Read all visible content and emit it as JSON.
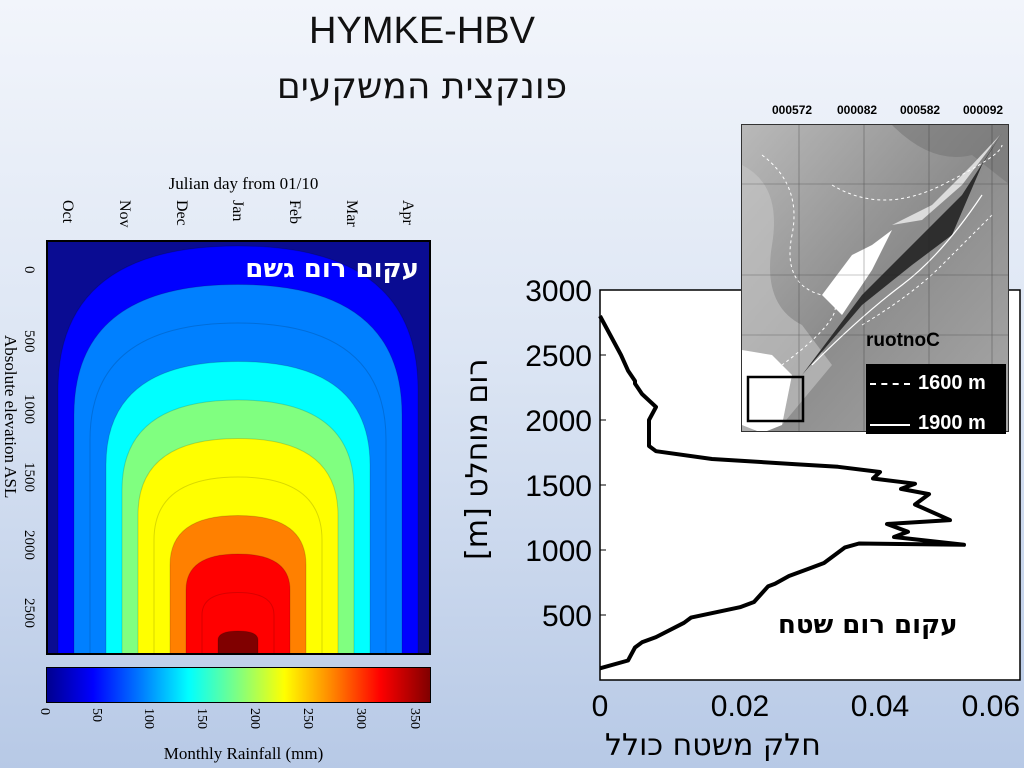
{
  "title": "HYMKE-HBV",
  "subtitle": "פונקצית המשקעים",
  "chart_data": [
    {
      "type": "heatmap",
      "title": "עקום רום גשם",
      "xlabel": "Julian day from 01/10",
      "ylabel": "Absolute elevation ASL",
      "x_tick_labels": [
        "Oct",
        "Nov",
        "Dec",
        "Jan",
        "Feb",
        "Mar",
        "Apr"
      ],
      "y_tick_labels": [
        "0",
        "500",
        "1000",
        "1500",
        "2000",
        "2500"
      ],
      "ylim": [
        0,
        2900
      ],
      "colorbar": {
        "label": "Monthly Rainfall (mm)",
        "ticks": [
          "0",
          "50",
          "100",
          "150",
          "200",
          "250",
          "300",
          "350"
        ],
        "range": [
          0,
          360
        ],
        "colors": [
          "#00008f",
          "#0000ff",
          "#0080ff",
          "#00ffff",
          "#80ff80",
          "#ffff00",
          "#ff8000",
          "#ff0000",
          "#800000"
        ]
      },
      "peak_month": "Jan"
    },
    {
      "type": "line",
      "title": "עקום רום שטח",
      "xlabel": "חלק משטח כולל",
      "ylabel": "רום מוחלט [m]",
      "xlim": [
        0,
        0.06
      ],
      "ylim": [
        0,
        3000
      ],
      "x_tick_labels": [
        "0",
        "0.02",
        "0.04",
        "0.06"
      ],
      "y_tick_labels": [
        "500",
        "1000",
        "1500",
        "2000",
        "2500",
        "3000"
      ],
      "series": [
        {
          "x": [
            0.0,
            0.004,
            0.005,
            0.006,
            0.008,
            0.012,
            0.013,
            0.02,
            0.022,
            0.024,
            0.025,
            0.027,
            0.03,
            0.032,
            0.035,
            0.037,
            0.052,
            0.042,
            0.044,
            0.041,
            0.05,
            0.045,
            0.047,
            0.043,
            0.045,
            0.039,
            0.04,
            0.034,
            0.028,
            0.016,
            0.008,
            0.007,
            0.007,
            0.007,
            0.008,
            0.007,
            0.006,
            0.005,
            0.005,
            0.004,
            0.003,
            0.002,
            0.001,
            0.0
          ],
          "y": [
            90,
            150,
            250,
            290,
            330,
            440,
            480,
            560,
            600,
            720,
            740,
            800,
            860,
            900,
            1020,
            1050,
            1040,
            1100,
            1140,
            1200,
            1230,
            1350,
            1430,
            1470,
            1510,
            1550,
            1600,
            1640,
            1660,
            1700,
            1760,
            1800,
            1900,
            2000,
            2100,
            2150,
            2200,
            2280,
            2300,
            2380,
            2500,
            2600,
            2700,
            2800
          ]
        }
      ]
    }
  ],
  "map": {
    "coords": [
      "000572",
      "000082",
      "000582",
      "000092"
    ],
    "contour_label": "ruotnoC",
    "legend": [
      {
        "label": "1600 m",
        "style": "dashed"
      },
      {
        "label": "1900 m",
        "style": "solid"
      }
    ]
  }
}
